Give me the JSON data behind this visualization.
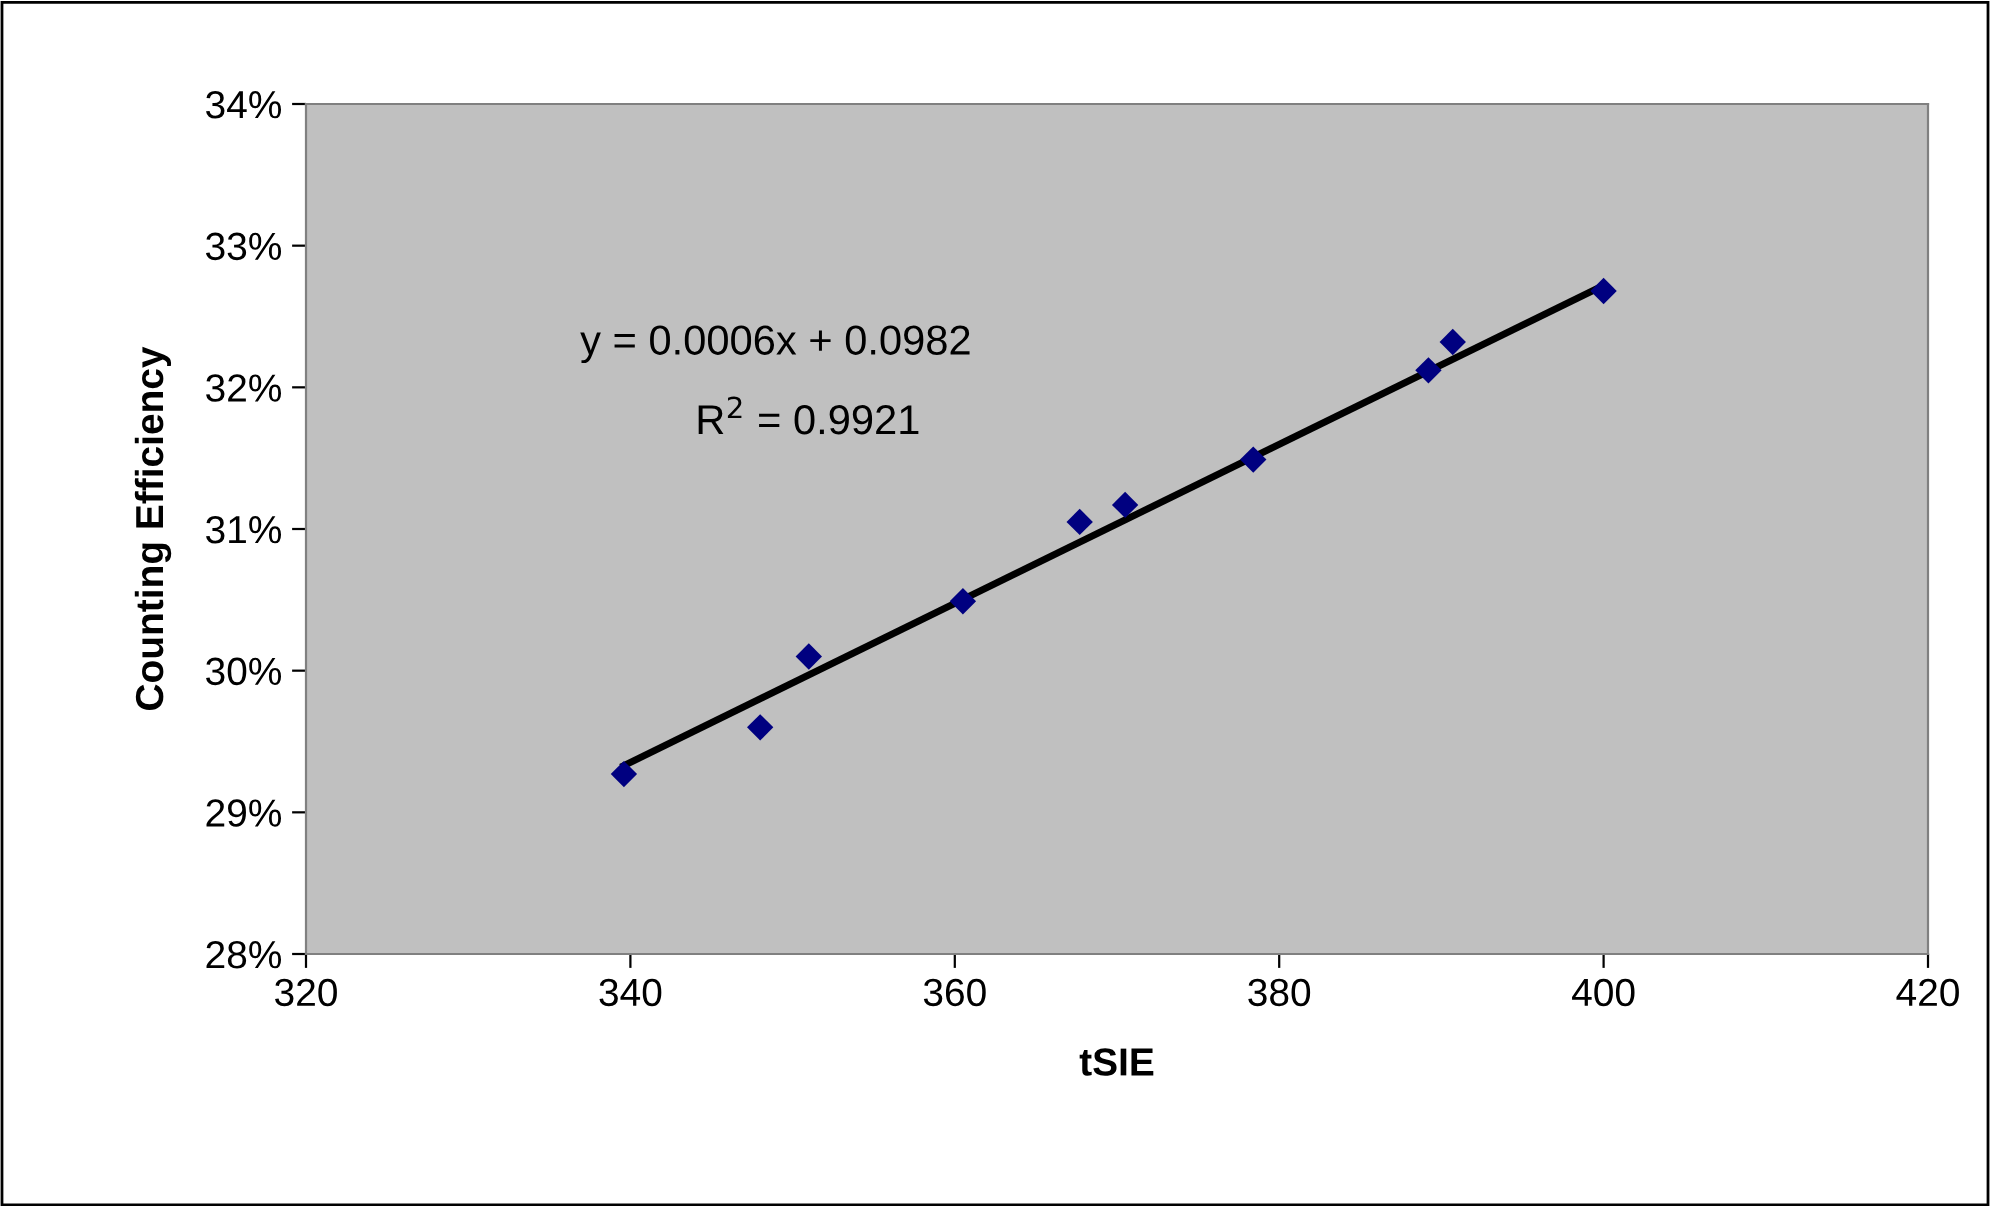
{
  "chart_data": {
    "type": "scatter",
    "xlabel": "tSIE",
    "ylabel": "Counting Efficiency",
    "annotations": [
      "y = 0.0006x + 0.0982",
      "R$^{2}$ = 0.9921"
    ],
    "series": [
      {
        "color": "#000080",
        "marker": "diamond",
        "x": [
          339.6,
          348.0,
          351.0,
          360.5,
          367.7,
          370.5,
          378.4,
          389.2,
          390.7,
          400.0
        ],
        "values": [
          29.27,
          29.6,
          30.1,
          30.49,
          31.05,
          31.17,
          31.49,
          32.12,
          32.32,
          32.68
        ]
      },
      {
        "type": "line",
        "color": "#000000",
        "x": [
          339.6,
          400.0
        ],
        "values": [
          29.33,
          32.72
        ]
      }
    ],
    "xlim": [
      320,
      420
    ],
    "xticks": [
      320,
      340,
      360,
      380,
      400,
      420
    ],
    "ylim": [
      28,
      34
    ],
    "yticks": [
      {
        "value": 28,
        "label": "28%"
      },
      {
        "value": 29,
        "label": "29%"
      },
      {
        "value": 30,
        "label": "30%"
      },
      {
        "value": 31,
        "label": "31%"
      },
      {
        "value": 32,
        "label": "32%"
      },
      {
        "value": 33,
        "label": "33%"
      },
      {
        "value": 34,
        "label": "34%"
      }
    ],
    "grid": false,
    "legend": false
  }
}
